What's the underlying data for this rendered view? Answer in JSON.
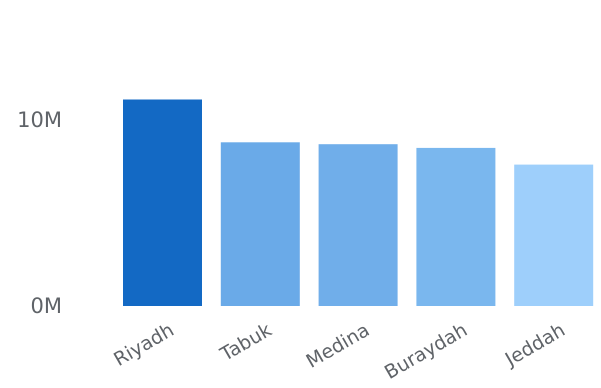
{
  "chart_data": {
    "type": "bar",
    "categories": [
      "Riyadh",
      "Tabuk",
      "Medina",
      "Buraydah",
      "Jeddah"
    ],
    "values": [
      11100000,
      8800000,
      8700000,
      8500000,
      7600000
    ],
    "bar_colors": [
      "#1369C4",
      "#6AAAE8",
      "#70AEEA",
      "#7AB7EE",
      "#9ECFFB"
    ],
    "yticks": [
      {
        "value": 0,
        "label": "0M"
      },
      {
        "value": 10000000,
        "label": "10M"
      }
    ],
    "ylim": [
      0,
      16500000
    ],
    "title": "",
    "xlabel": "",
    "ylabel": "",
    "grid": false,
    "legend": false
  }
}
